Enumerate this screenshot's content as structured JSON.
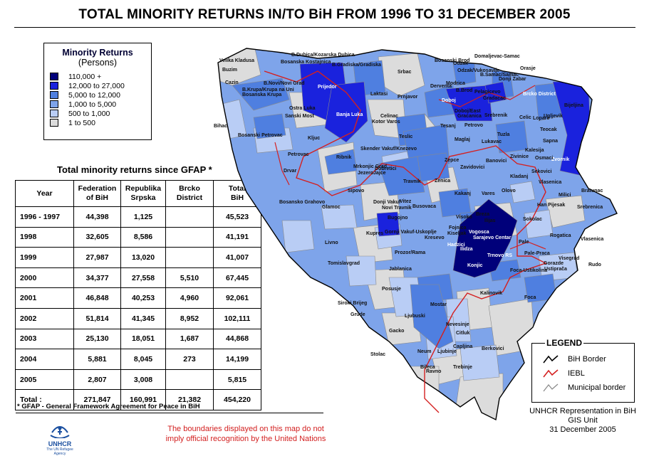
{
  "title": "TOTAL MINORITY RETURNS IN/TO BiH FROM 1996 TO 31 DECEMBER 2005",
  "legend": {
    "title": "Minority Returns",
    "subtitle": "(Persons)",
    "classes": [
      {
        "label": "110,000 +",
        "color": "#00007a"
      },
      {
        "label": "12,000 to 27,000",
        "color": "#1a22dd"
      },
      {
        "label": "5,000 to 12,000",
        "color": "#4f7fe0"
      },
      {
        "label": "1,000 to 5,000",
        "color": "#7ea4ea"
      },
      {
        "label": "500 to 1,000",
        "color": "#b9cdf5"
      },
      {
        "label": "1 to 500",
        "color": "#dcdcdc"
      }
    ]
  },
  "table": {
    "caption": "Total minority returns since GFAP *",
    "headers": {
      "year": "Year",
      "fbih": [
        "Federation",
        "of BiH"
      ],
      "rs": [
        "Republika",
        "Srpska"
      ],
      "brcko": [
        "Brcko",
        "District"
      ],
      "total": [
        "Total",
        "BiH"
      ]
    },
    "rows": [
      {
        "year": "1996 - 1997",
        "fbih": "44,398",
        "rs": "1,125",
        "brcko": "",
        "total": "45,523"
      },
      {
        "year": "1998",
        "fbih": "32,605",
        "rs": "8,586",
        "brcko": "",
        "total": "41,191"
      },
      {
        "year": "1999",
        "fbih": "27,987",
        "rs": "13,020",
        "brcko": "",
        "total": "41,007"
      },
      {
        "year": "2000",
        "fbih": "34,377",
        "rs": "27,558",
        "brcko": "5,510",
        "total": "67,445"
      },
      {
        "year": "2001",
        "fbih": "46,848",
        "rs": "40,253",
        "brcko": "4,960",
        "total": "92,061"
      },
      {
        "year": "2002",
        "fbih": "51,814",
        "rs": "41,345",
        "brcko": "8,952",
        "total": "102,111"
      },
      {
        "year": "2003",
        "fbih": "25,130",
        "rs": "18,051",
        "brcko": "1,687",
        "total": "44,868"
      },
      {
        "year": "2004",
        "fbih": "5,881",
        "rs": "8,045",
        "brcko": "273",
        "total": "14,199"
      },
      {
        "year": "2005",
        "fbih": "2,807",
        "rs": "3,008",
        "brcko": "",
        "total": "5,815"
      }
    ],
    "total_row": {
      "year": "Total :",
      "fbih": "271,847",
      "rs": "160,991",
      "brcko": "21,382",
      "total": "454,220"
    }
  },
  "footnote": "* GFAP - General Framework Agreement for Peace in BiH",
  "disclaimer": [
    "The boundaries displayed on this map do not",
    "imply official recognition by the United Nations"
  ],
  "logo": {
    "name": "UNHCR",
    "tagline": "The UN Refugee Agency"
  },
  "map_legend": {
    "title": "LEGEND",
    "items": [
      {
        "label": "BiH Border",
        "color": "#000000"
      },
      {
        "label": "IEBL",
        "color": "#d42020"
      },
      {
        "label": "Municipal border",
        "color": "#888888"
      }
    ]
  },
  "credit": [
    "UNHCR Representation in BiH",
    "GIS Unit",
    "31 December 2005"
  ],
  "municipalities": [
    "Velika Kladusa",
    "Buzim",
    "B.Dubica/Kozarska Dubica",
    "Bosanska Kostajnica",
    "B.Gradiska/Gradiska",
    "Bosanski Brod",
    "Domaljevac-Samac",
    "Odzak",
    "Orasje",
    "Odzak/Vukosavlje",
    "B.Samac/Samac",
    "Donji Zabar",
    "Cazin",
    "B.Novi/Novi Grad",
    "Prijedor",
    "B.Krupa/Krupa na Uni",
    "Bosanska Krupa",
    "Srbac",
    "Modrica",
    "B.Brod",
    "Derventa",
    "Brcko District",
    "Bijeljina",
    "Ostra Luka",
    "Banja Luka",
    "Laktasi",
    "Prnjavor",
    "Pelagicevo",
    "Gradacac",
    "Sanski Most",
    "Celinac",
    "Doboj",
    "Doboj/East",
    "Gracanica",
    "Srebrenik",
    "Celic",
    "Lopare",
    "Ugljevik",
    "Bihac",
    "Tesanj",
    "Petrovo",
    "Teocak",
    "Bosanski Petrovac",
    "Kotor Varos",
    "Teslic",
    "Maglaj",
    "Lukavac",
    "Tuzla",
    "Sapna",
    "Kljuc",
    "Skender Vakuf/Knezevo",
    "Kalesija",
    "Zvornik",
    "Petrovac",
    "Ribnik",
    "Zepce",
    "Zivinice",
    "Osmaci",
    "Mrkonjic Grad",
    "Jezero",
    "Banovici",
    "Drvar",
    "Dobretici",
    "Jajce",
    "Zavidovici",
    "Sekovici",
    "Kladanj",
    "Travnik",
    "Zenica",
    "Vlasenica",
    "Milici",
    "Sipovo",
    "Kakanj",
    "Vares",
    "Olovo",
    "Bratunac",
    "Bosansko Grahovo",
    "Glamoc",
    "Donji Vakuf",
    "Novi Travnik",
    "Vitez",
    "Busovaca",
    "Han Pijesak",
    "Srebrenica",
    "Breza",
    "Visoko",
    "Ilijas",
    "Bugojno",
    "Kupres",
    "Gornji Vakuf-Uskoplje",
    "Fojnica",
    "Kiseljak",
    "Sokolac",
    "Livno",
    "Kresevo",
    "Vogosca",
    "Sarajevo Centar",
    "Hadzici",
    "Ilidza",
    "Rogatica",
    "Vlasenica",
    "Prozor/Rama",
    "Pale",
    "Trnovo RS",
    "Pale-Praca",
    "Visegrad",
    "Tomislavgrad",
    "Jablanica",
    "Konjic",
    "Gorazde",
    "Ustiprača",
    "Foca-Ustikolina",
    "Rudo",
    "Posusje",
    "Kalinovik",
    "Foca",
    "Siroki Brijeg",
    "Mostar",
    "Grude",
    "Nevesinje",
    "Ljubuski",
    "Citluk",
    "Gacko",
    "Capljina",
    "Stolac",
    "Berkovici",
    "Neum",
    "Ljubinje",
    "Bileca",
    "Ravno",
    "Trebinje"
  ]
}
